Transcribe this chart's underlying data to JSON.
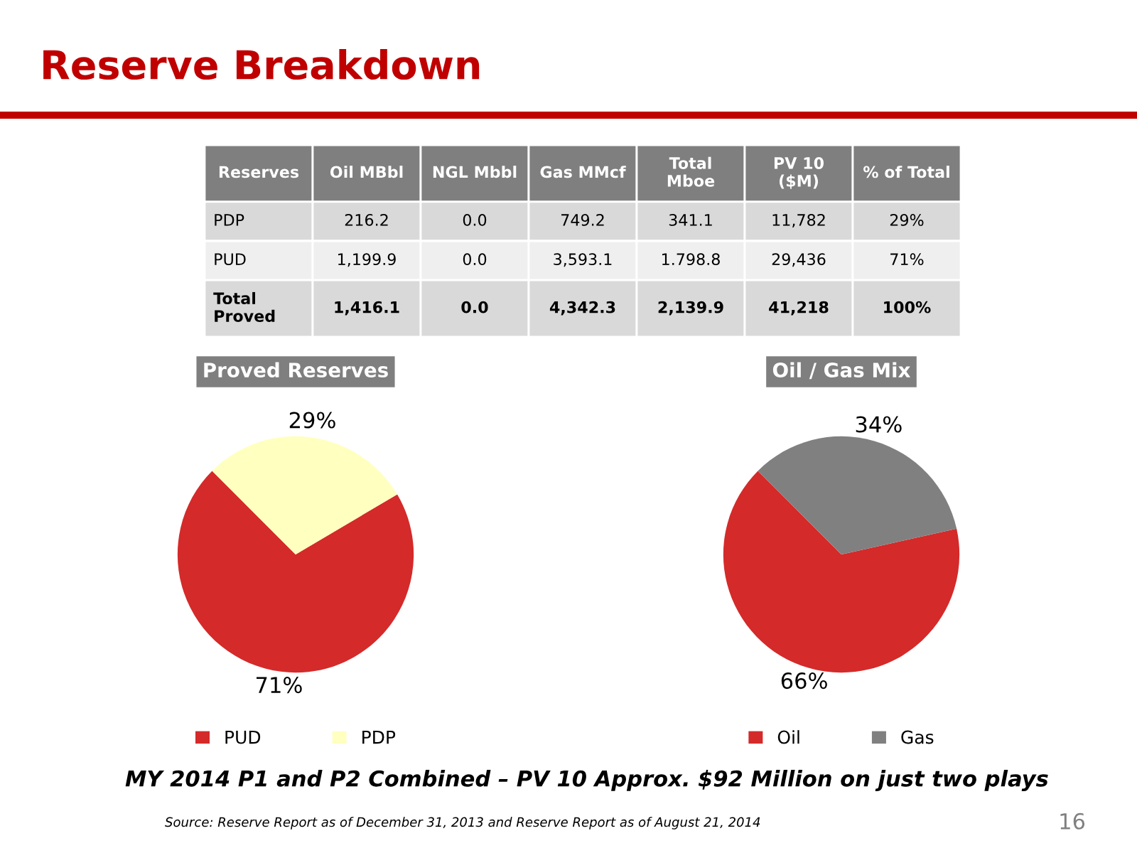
{
  "chart_data": [
    {
      "type": "other",
      "title": "Reserve Breakdown",
      "categories": [
        "Reserves",
        "Oil MBbl",
        "NGL Mbbl",
        "Gas MMcf",
        "Total\nMboe",
        "PV 10\n($M)",
        "% of Total"
      ],
      "annotations": [
        "PDP",
        "216.2",
        "0.0",
        "749.2",
        "341.1",
        "11,782",
        "29%",
        "PUD",
        "1,199.9",
        "0.0",
        "3,593.1",
        "1.798.8",
        "29,436",
        "71%",
        "Total\nProved",
        "1,416.1",
        "0.0",
        "4,342.3",
        "2,139.9",
        "41,218",
        "100%"
      ]
    },
    {
      "type": "pie",
      "title": "Proved Reserves",
      "categories": [
        "PUD",
        "PDP"
      ],
      "values": [
        71,
        29
      ],
      "colors": [
        "#d42a2a",
        "#ffffc0"
      ],
      "value_labels": [
        "71%",
        "29%"
      ],
      "legend": "bottom"
    },
    {
      "type": "pie",
      "title": "Oil / Gas Mix",
      "categories": [
        "Oil",
        "Gas"
      ],
      "values": [
        66,
        34
      ],
      "colors": [
        "#d42a2a",
        "#808080"
      ],
      "value_labels": [
        "66%",
        "34%"
      ],
      "legend": "bottom",
      "annotations": [
        "MY 2014 P1 and P2 Combined – PV 10 Approx. $92 Million on just two plays",
        "Source: Reserve Report as of December 31, 2013 and Reserve Report as of August 21, 2014",
        "16"
      ]
    }
  ]
}
